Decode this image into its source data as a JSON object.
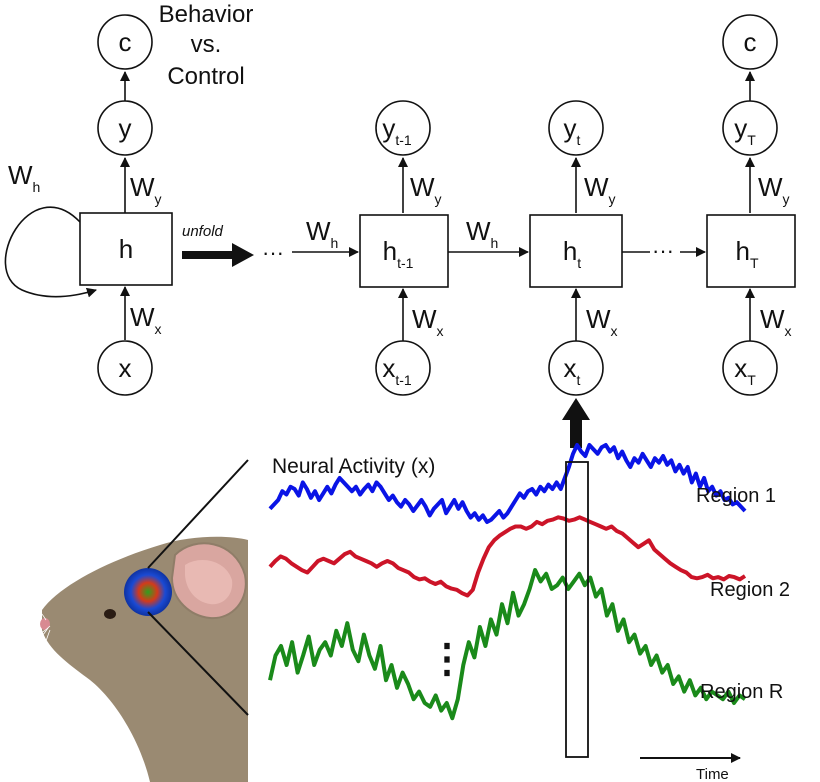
{
  "labels": {
    "behavior_line1": "Behavior",
    "behavior_line2": "vs.",
    "behavior_line3": "Control",
    "unfold": "unfold",
    "dots_h": "···",
    "neural_activity": "Neural Activity (x)",
    "region1": "Region 1",
    "region2": "Region 2",
    "regionR": "Region R",
    "time": "Time",
    "vdots": "⋮"
  },
  "nodes": {
    "c": "c",
    "y": "y",
    "h": "h",
    "x": "x",
    "W": "W",
    "sub_h": "h",
    "sub_y": "y",
    "sub_x": "x",
    "sub_tm1": "t-1",
    "sub_t": "t",
    "sub_T": "T"
  },
  "colors": {
    "region1": "#0a14e6",
    "region2": "#cc1428",
    "regionR": "#1a8a1a",
    "ink": "#111111"
  },
  "traces": {
    "region1": [
      0.42,
      0.46,
      0.5,
      0.58,
      0.55,
      0.62,
      0.6,
      0.54,
      0.66,
      0.6,
      0.52,
      0.58,
      0.5,
      0.56,
      0.62,
      0.56,
      0.64,
      0.7,
      0.66,
      0.62,
      0.58,
      0.62,
      0.55,
      0.6,
      0.64,
      0.58,
      0.66,
      0.62,
      0.56,
      0.5,
      0.54,
      0.48,
      0.44,
      0.5,
      0.46,
      0.4,
      0.45,
      0.5,
      0.44,
      0.36,
      0.42,
      0.46,
      0.5,
      0.38,
      0.44,
      0.5,
      0.42,
      0.48,
      0.4,
      0.34,
      0.38,
      0.32,
      0.36,
      0.3,
      0.32,
      0.36,
      0.4,
      0.34,
      0.38,
      0.44,
      0.5,
      0.56,
      0.52,
      0.58,
      0.6,
      0.55,
      0.62,
      0.58,
      0.64,
      0.6,
      0.66,
      0.6,
      0.7,
      0.8,
      0.92,
      1.0,
      0.94,
      0.9,
      1.0,
      0.96,
      0.92,
      0.98,
      1.0,
      0.94,
      0.98,
      0.88,
      0.94,
      0.86,
      0.8,
      0.88,
      0.84,
      0.92,
      0.86,
      0.8,
      0.88,
      0.84,
      0.9,
      0.82,
      0.86,
      0.76,
      0.82,
      0.74,
      0.8,
      0.66,
      0.74,
      0.62,
      0.7,
      0.58,
      0.62,
      0.54,
      0.58,
      0.5,
      0.52,
      0.46,
      0.48,
      0.44,
      0.4
    ],
    "region2": [
      0.55,
      0.6,
      0.64,
      0.62,
      0.58,
      0.55,
      0.52,
      0.5,
      0.55,
      0.6,
      0.62,
      0.6,
      0.58,
      0.62,
      0.66,
      0.68,
      0.64,
      0.62,
      0.6,
      0.58,
      0.55,
      0.58,
      0.6,
      0.58,
      0.54,
      0.52,
      0.5,
      0.46,
      0.44,
      0.45,
      0.42,
      0.4,
      0.42,
      0.38,
      0.36,
      0.35,
      0.32,
      0.3,
      0.35,
      0.5,
      0.62,
      0.72,
      0.78,
      0.82,
      0.85,
      0.88,
      0.9,
      0.9,
      0.88,
      0.9,
      0.94,
      0.92,
      0.95,
      0.96,
      0.98,
      0.97,
      0.95,
      0.96,
      0.98,
      0.96,
      0.94,
      0.92,
      0.9,
      0.88,
      0.9,
      0.86,
      0.84,
      0.8,
      0.76,
      0.72,
      0.75,
      0.78,
      0.7,
      0.66,
      0.62,
      0.58,
      0.55,
      0.52,
      0.5,
      0.46,
      0.45,
      0.46,
      0.48,
      0.45,
      0.46,
      0.44,
      0.47,
      0.46,
      0.44,
      0.47
    ],
    "regionR": [
      0.42,
      0.55,
      0.6,
      0.5,
      0.62,
      0.46,
      0.55,
      0.65,
      0.5,
      0.58,
      0.62,
      0.55,
      0.68,
      0.6,
      0.72,
      0.58,
      0.52,
      0.66,
      0.55,
      0.48,
      0.6,
      0.42,
      0.5,
      0.38,
      0.46,
      0.4,
      0.32,
      0.36,
      0.3,
      0.28,
      0.34,
      0.26,
      0.3,
      0.22,
      0.32,
      0.5,
      0.62,
      0.54,
      0.7,
      0.6,
      0.74,
      0.66,
      0.82,
      0.72,
      0.88,
      0.76,
      0.82,
      0.9,
      1.0,
      0.94,
      0.98,
      0.9,
      0.92,
      0.96,
      0.9,
      0.94,
      0.98,
      0.92,
      0.96,
      0.86,
      0.9,
      0.76,
      0.82,
      0.68,
      0.74,
      0.62,
      0.66,
      0.56,
      0.6,
      0.5,
      0.55,
      0.46,
      0.5,
      0.4,
      0.44,
      0.36,
      0.42,
      0.34,
      0.38,
      0.32,
      0.36,
      0.34,
      0.32,
      0.36,
      0.3,
      0.34,
      0.32
    ]
  }
}
